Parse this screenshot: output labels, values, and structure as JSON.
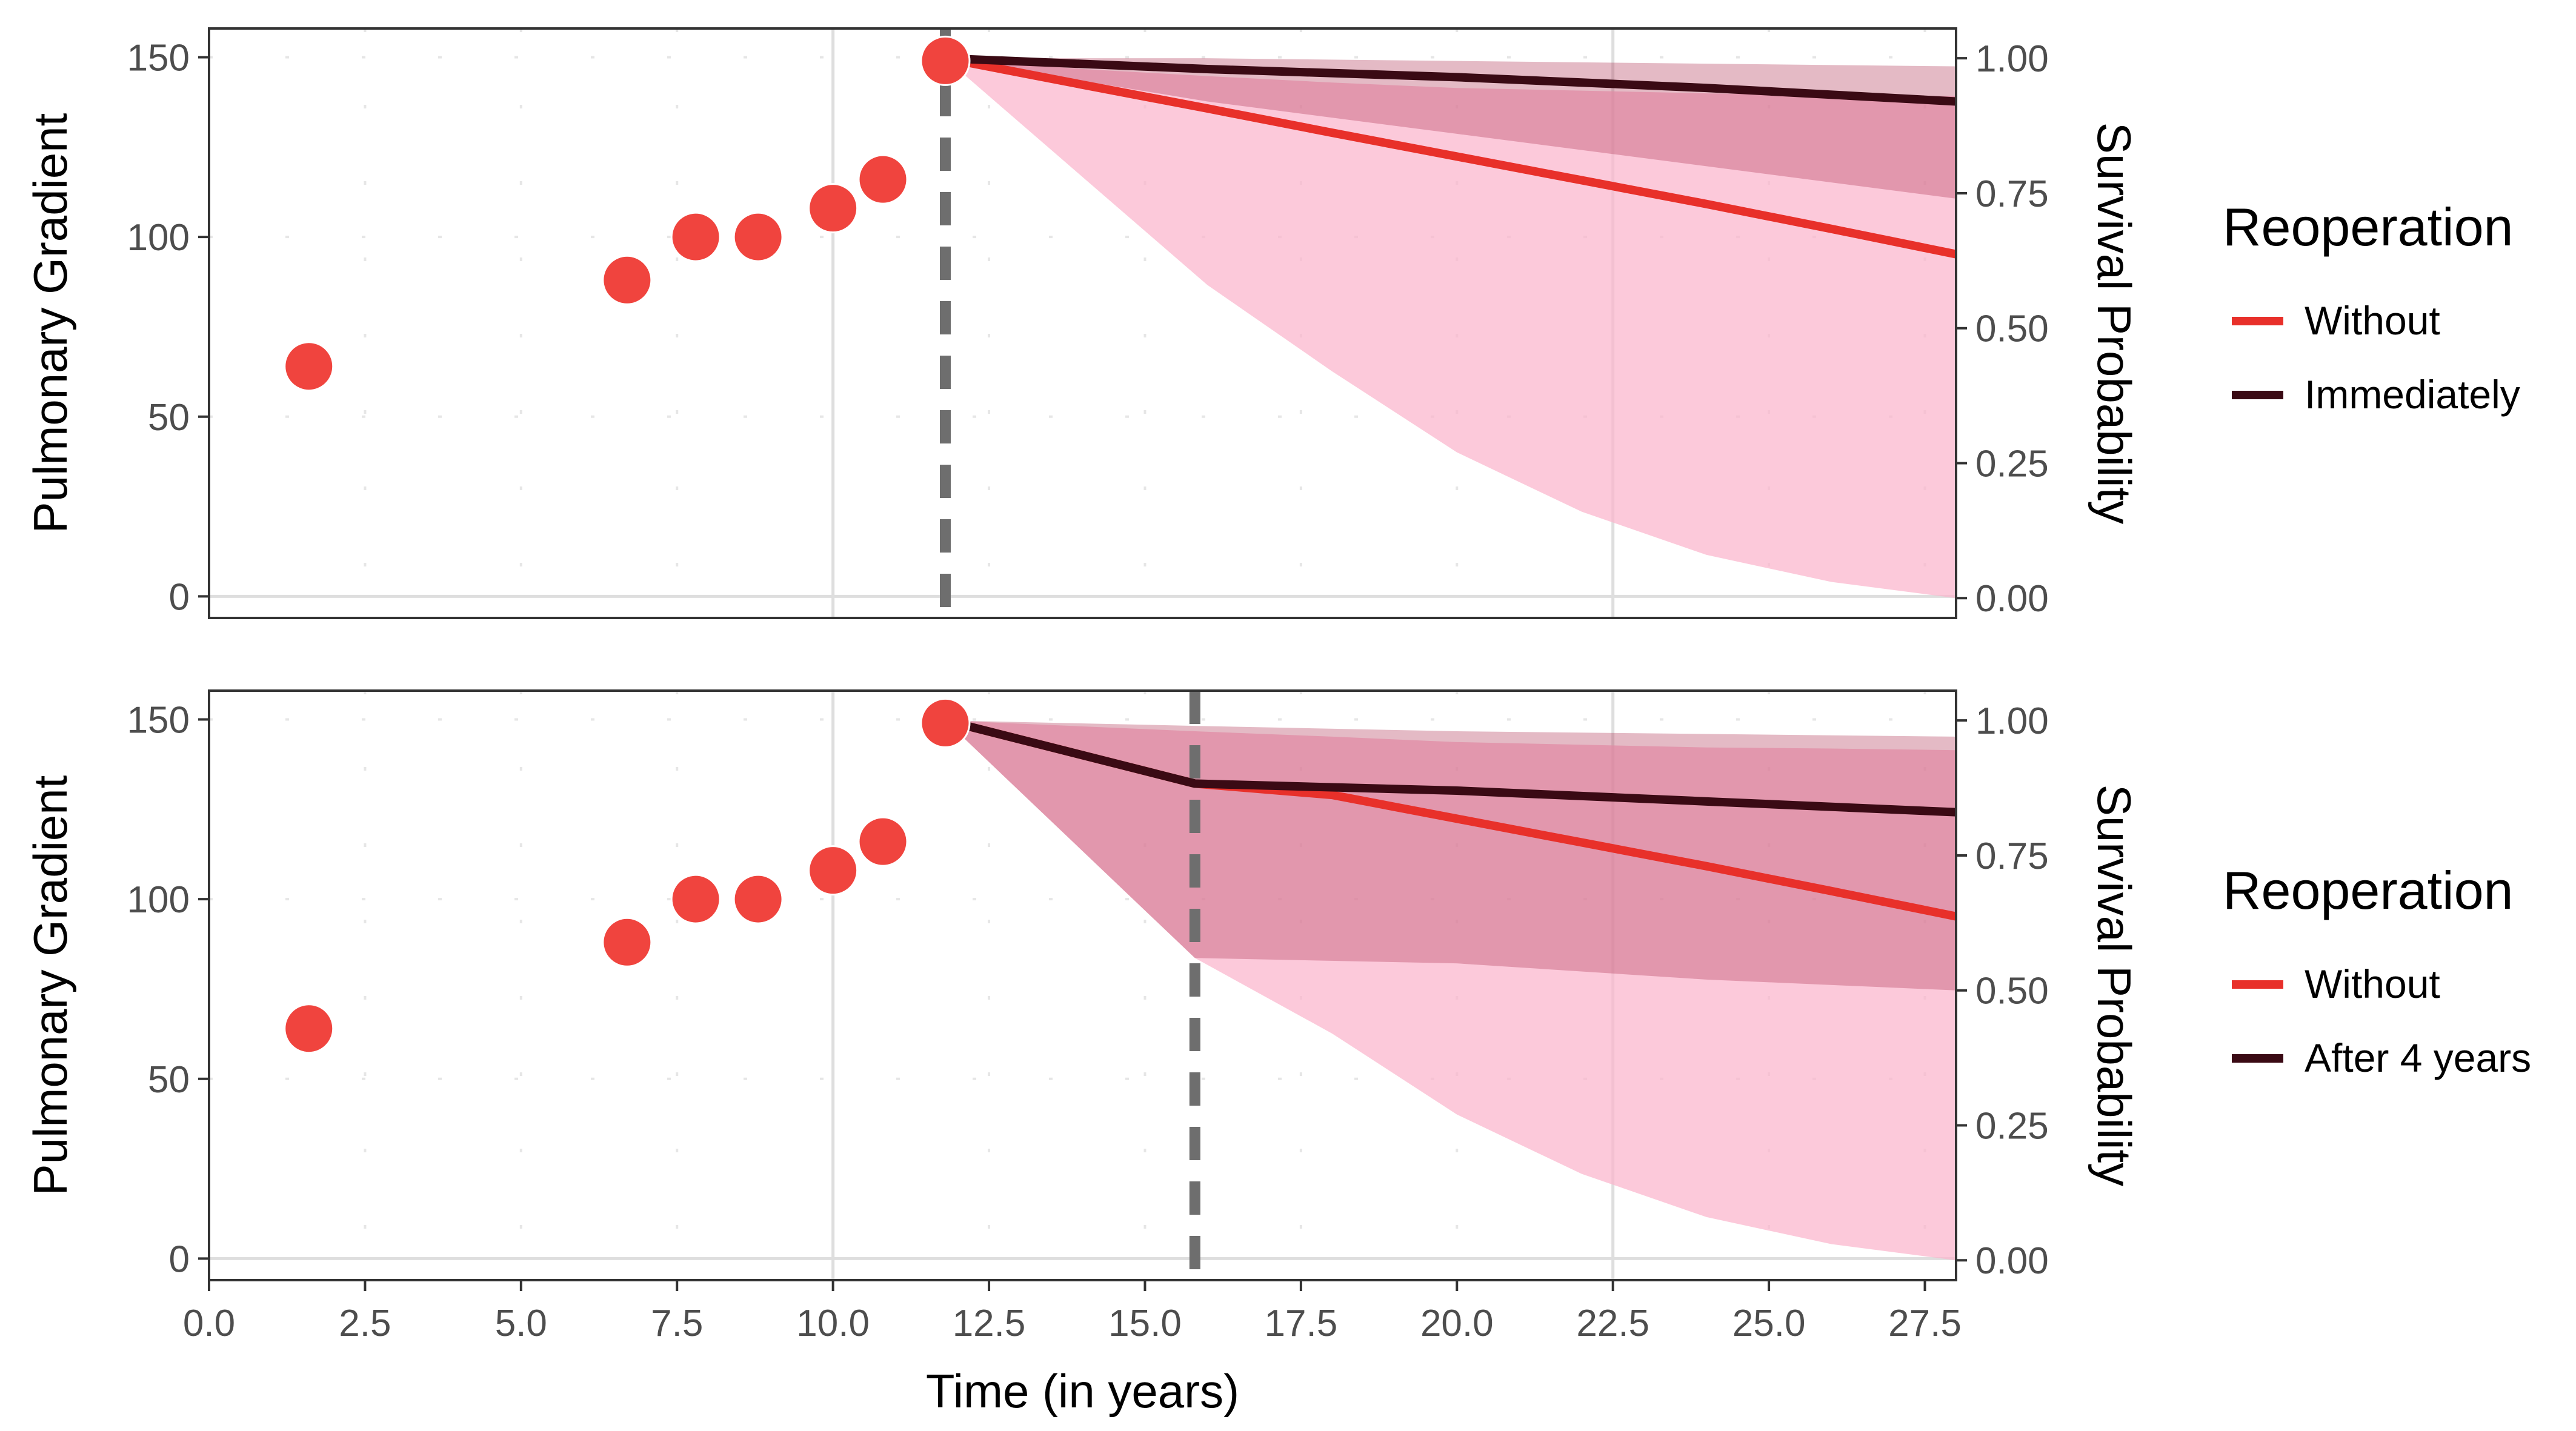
{
  "chart_data": [
    {
      "type": "scatter+line",
      "panel": "top",
      "ylabel": "Pulmonary Gradient",
      "y2label": "Survival Probability",
      "xlim": [
        0,
        28
      ],
      "ylim": [
        -6,
        158
      ],
      "y2lim": [
        -0.0368,
        1.0552
      ],
      "y_ticks": [
        "0",
        "50",
        "100",
        "150"
      ],
      "y2_ticks": [
        "0.00",
        "0.25",
        "0.50",
        "0.75",
        "1.00"
      ],
      "grid": "major x gridlines at 10 and 22.5; minor dotted grid",
      "measurements": {
        "x": [
          1.6,
          6.7,
          7.8,
          8.8,
          10.0,
          10.8,
          11.8
        ],
        "y": [
          64,
          88,
          100,
          100,
          108,
          116,
          149
        ]
      },
      "vline_x": 11.8,
      "series": [
        {
          "name": "Without",
          "color": "#e8302a",
          "x": [
            11.8,
            14,
            16,
            18,
            20,
            22,
            24,
            26,
            28
          ],
          "y": [
            1.0,
            0.951,
            0.907,
            0.862,
            0.818,
            0.774,
            0.73,
            0.684,
            0.637
          ],
          "band_lower": [
            1.0,
            0.78,
            0.58,
            0.42,
            0.27,
            0.16,
            0.08,
            0.03,
            0.0
          ],
          "band_upper": [
            1.0,
            0.98,
            0.967,
            0.955,
            0.945,
            0.94,
            0.935,
            0.932,
            0.93
          ]
        },
        {
          "name": "Immediately",
          "color": "#3a0a14",
          "x": [
            11.8,
            16,
            20,
            24,
            28
          ],
          "y": [
            1.0,
            0.98,
            0.965,
            0.945,
            0.92
          ],
          "band_lower": [
            1.0,
            0.92,
            0.86,
            0.8,
            0.74
          ],
          "band_upper": [
            1.0,
            1.0,
            0.995,
            0.99,
            0.985
          ]
        }
      ],
      "legend": {
        "title": "Reoperation",
        "placement": "right",
        "items": [
          "Without",
          "Immediately"
        ]
      }
    },
    {
      "type": "scatter+line",
      "panel": "bottom",
      "xlabel": "Time (in years)",
      "ylabel": "Pulmonary Gradient",
      "y2label": "Survival Probability",
      "xlim": [
        0,
        28
      ],
      "ylim": [
        -6,
        158
      ],
      "y2lim": [
        -0.0368,
        1.0552
      ],
      "x_ticks": [
        "0.0",
        "2.5",
        "5.0",
        "7.5",
        "10.0",
        "12.5",
        "15.0",
        "17.5",
        "20.0",
        "22.5",
        "25.0",
        "27.5"
      ],
      "y_ticks": [
        "0",
        "50",
        "100",
        "150"
      ],
      "y2_ticks": [
        "0.00",
        "0.25",
        "0.50",
        "0.75",
        "1.00"
      ],
      "grid": "major x gridlines at 10 and 22.5; minor dotted grid",
      "measurements": {
        "x": [
          1.6,
          6.7,
          7.8,
          8.8,
          10.0,
          10.8,
          11.8
        ],
        "y": [
          64,
          88,
          100,
          100,
          108,
          116,
          149
        ]
      },
      "vline_x": 15.8,
      "series": [
        {
          "name": "Without",
          "color": "#e8302a",
          "x": [
            11.8,
            15.8,
            18,
            20,
            22,
            24,
            26,
            28
          ],
          "y": [
            1.0,
            0.883,
            0.862,
            0.818,
            0.774,
            0.73,
            0.684,
            0.637
          ],
          "band_lower": [
            1.0,
            0.56,
            0.42,
            0.27,
            0.16,
            0.08,
            0.03,
            0.0
          ],
          "band_upper": [
            1.0,
            0.98,
            0.97,
            0.96,
            0.955,
            0.95,
            0.948,
            0.945
          ]
        },
        {
          "name": "After 4 years",
          "color": "#3a0a14",
          "x": [
            11.8,
            15.8,
            20,
            24,
            28
          ],
          "y": [
            1.0,
            0.883,
            0.87,
            0.85,
            0.83
          ],
          "band_lower": [
            1.0,
            0.56,
            0.55,
            0.52,
            0.5
          ],
          "band_upper": [
            1.0,
            0.99,
            0.98,
            0.975,
            0.97
          ]
        }
      ],
      "legend": {
        "title": "Reoperation",
        "placement": "right",
        "items": [
          "Without",
          "After 4 years"
        ]
      }
    }
  ]
}
